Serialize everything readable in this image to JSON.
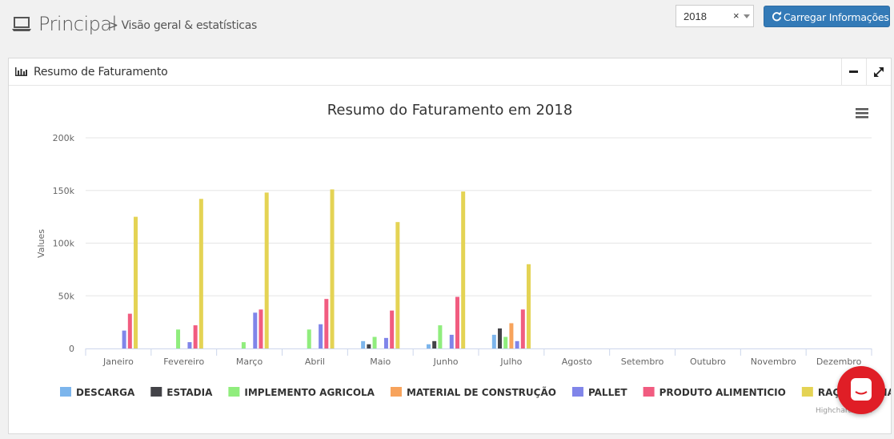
{
  "header": {
    "title": "Principal",
    "subtitle": "> Visão geral & estatísticas",
    "icon": "laptop-icon"
  },
  "year_select": {
    "value": "2018",
    "clear": "×"
  },
  "load_button": {
    "label": "Carregar Informações",
    "icon": "refresh-icon",
    "color": "#337ab7"
  },
  "panel": {
    "title": "Resumo de Faturamento",
    "icon": "bar-chart-icon"
  },
  "highcharts_credit": "Highcharts.com",
  "chart_data": {
    "type": "bar",
    "title": "Resumo do Faturamento em 2018",
    "ylabel": "Values",
    "xlabel": "",
    "ylim": [
      0,
      200000
    ],
    "yticks": [
      0,
      50000,
      100000,
      150000,
      200000
    ],
    "ytick_labels": [
      "0",
      "50k",
      "100k",
      "150k",
      "200k"
    ],
    "grid": true,
    "legend_position": "bottom",
    "categories": [
      "Janeiro",
      "Fevereiro",
      "Março",
      "Abril",
      "Maio",
      "Junho",
      "Julho",
      "Agosto",
      "Setembro",
      "Outubro",
      "Novembro",
      "Dezembro"
    ],
    "series": [
      {
        "name": "DESCARGA",
        "color": "#7cb5ec",
        "values": [
          0,
          0,
          0,
          0,
          7000,
          4000,
          13000,
          0,
          0,
          0,
          0,
          0
        ]
      },
      {
        "name": "ESTADIA",
        "color": "#434348",
        "values": [
          0,
          0,
          0,
          0,
          4000,
          7000,
          19000,
          0,
          0,
          0,
          0,
          0
        ]
      },
      {
        "name": "IMPLEMENTO AGRICOLA",
        "color": "#90ed7d",
        "values": [
          0,
          18000,
          6000,
          18000,
          11000,
          22000,
          11000,
          0,
          0,
          0,
          0,
          0
        ]
      },
      {
        "name": "MATERIAL DE CONSTRUÇÃO",
        "color": "#f7a35c",
        "values": [
          0,
          0,
          0,
          0,
          0,
          0,
          24000,
          0,
          0,
          0,
          0,
          0
        ]
      },
      {
        "name": "PALLET",
        "color": "#8085e9",
        "values": [
          17000,
          6000,
          34000,
          23000,
          10000,
          13000,
          7000,
          0,
          0,
          0,
          0,
          0
        ]
      },
      {
        "name": "PRODUTO ALIMENTICIO",
        "color": "#f15c80",
        "values": [
          33000,
          22000,
          37000,
          47000,
          36000,
          49000,
          37000,
          0,
          0,
          0,
          0,
          0
        ]
      },
      {
        "name": "RAÇÃO ANIMAL",
        "color": "#e4d354",
        "values": [
          125000,
          142000,
          148000,
          151000,
          120000,
          149000,
          80000,
          0,
          0,
          0,
          0,
          0
        ]
      }
    ]
  }
}
